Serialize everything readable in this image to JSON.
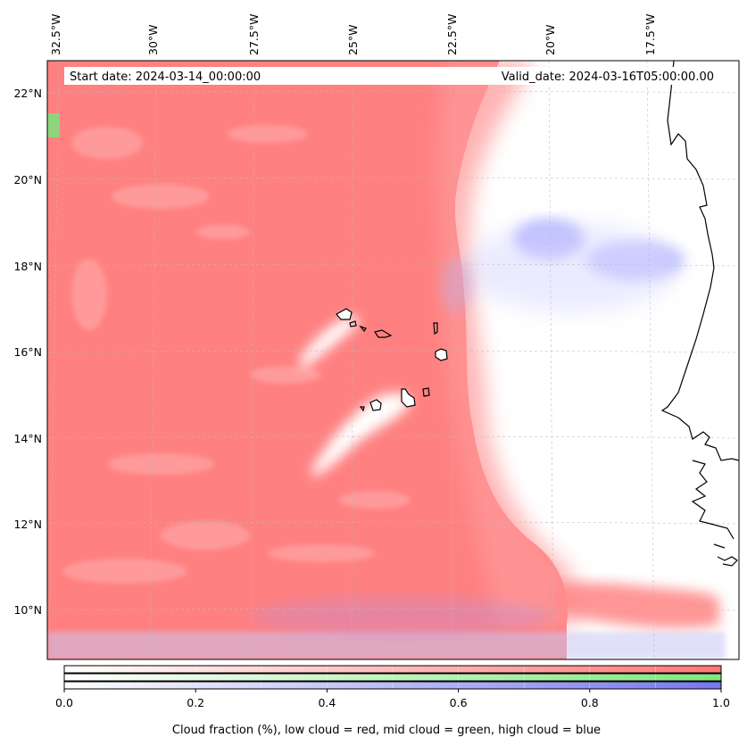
{
  "header": {
    "start_date": "Start date: 2024-03-14_00:00:00",
    "valid_date": "Valid_date: 2024-03-16T05:00:00.00"
  },
  "map": {
    "longitude_labels": [
      "32.5°W",
      "30°W",
      "27.5°W",
      "25°W",
      "22.5°W",
      "20°W",
      "17.5°W"
    ],
    "latitude_labels": [
      "22°N",
      "20°N",
      "18°N",
      "16°N",
      "14°N",
      "12°N",
      "10°N"
    ],
    "gridlines": "dashed-light-gray",
    "colors": {
      "low_cloud": "#ff7f7f",
      "mid_cloud": "#7fe87f",
      "high_cloud": "#8f8fff",
      "coastline": "#000000"
    }
  },
  "colorbar": {
    "tick_labels": [
      "0.0",
      "0.2",
      "0.4",
      "0.6",
      "0.8",
      "1.0"
    ],
    "range": [
      0.0,
      1.0
    ],
    "ramps": [
      {
        "name": "low cloud",
        "end_color": "#ff7777"
      },
      {
        "name": "mid cloud",
        "end_color": "#7fe87f"
      },
      {
        "name": "high cloud",
        "end_color": "#7777ee"
      }
    ],
    "caption": "Cloud fraction (%), low cloud = red, mid cloud = green, high cloud = blue"
  }
}
